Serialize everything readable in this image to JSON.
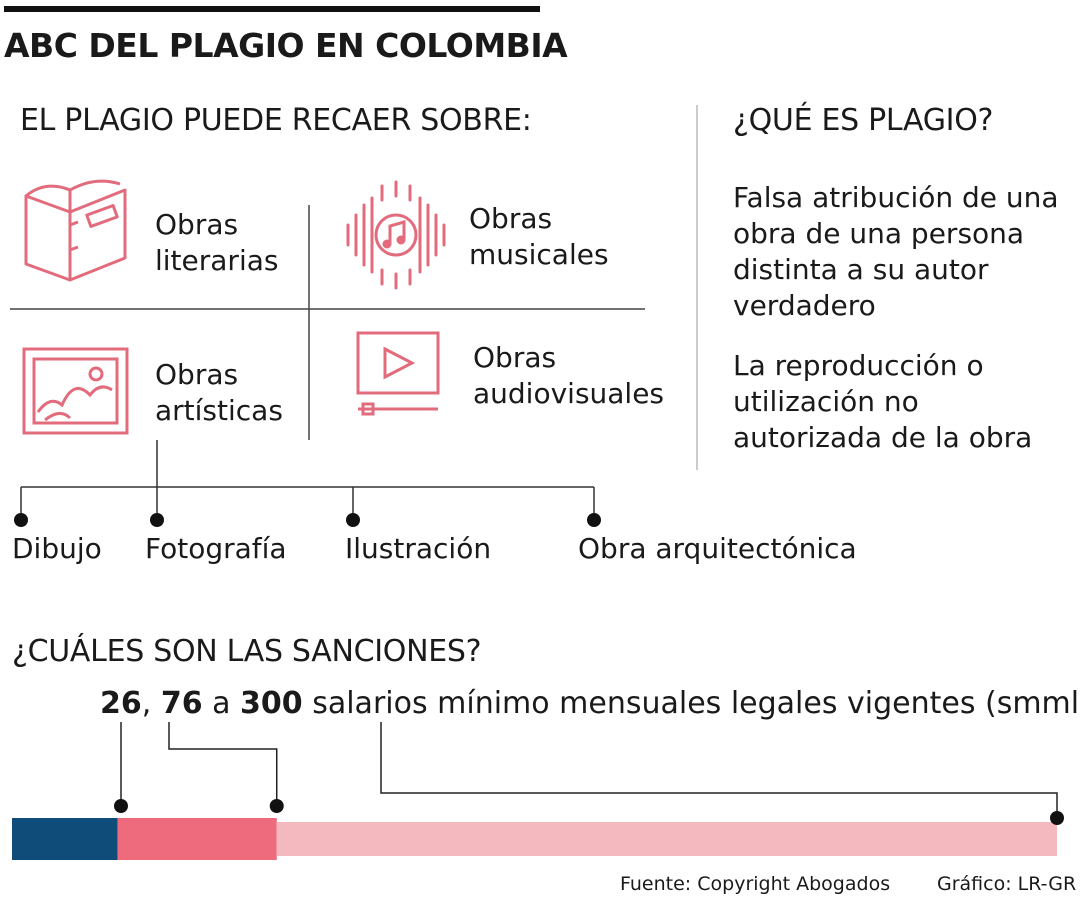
{
  "title": "ABC DEL PLAGIO EN COLOMBIA",
  "section_objects": {
    "heading": "EL PLAGIO PUEDE RECAER SOBRE:",
    "items": [
      {
        "label": "Obras literarias",
        "icon": "book-icon"
      },
      {
        "label": "Obras musicales",
        "icon": "music-note-icon"
      },
      {
        "label": "Obras artísticas",
        "icon": "framed-picture-icon"
      },
      {
        "label": "Obras audiovisuales",
        "icon": "video-play-icon"
      }
    ],
    "artistic_types": [
      "Dibujo",
      "Fotografía",
      "Ilustración",
      "Obra arquitectónica"
    ]
  },
  "section_definition": {
    "heading": "¿QUÉ ES PLAGIO?",
    "definitions": [
      "Falsa atribución de una obra de una persona distinta a su autor verdadero",
      "La reproducción o utilización no autorizada de la obra"
    ]
  },
  "section_sanctions": {
    "heading": "¿CUÁLES SON LAS SANCIONES?",
    "value_1": "26",
    "sep_1": ", ",
    "value_2": "76",
    "sep_2": " a ",
    "value_3": "300",
    "unit_text": " salarios mínimo mensuales legales vigentes (smmlv)",
    "scale": {
      "min": 0,
      "max": 300,
      "markers": [
        26,
        76,
        300
      ]
    },
    "colors": {
      "segment_1": "#0f4c7a",
      "segment_2": "#ee6b7e",
      "segment_3": "#f3b9bf"
    }
  },
  "footer": {
    "source": "Fuente: Copyright Abogados",
    "credit": "Gráfico: LR-GR"
  },
  "colors": {
    "icon": "#e26b7c",
    "text": "#1a1a1a",
    "line": "#333333"
  }
}
